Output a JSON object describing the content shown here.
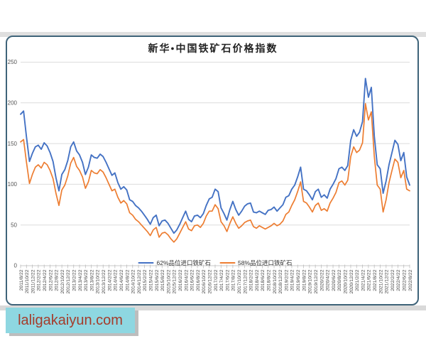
{
  "page": {
    "watermark": "laligakaiyun.com",
    "colors": {
      "watermark_bg": "#8ed7e1",
      "watermark_text": "#a53c2b",
      "panel_border": "#3e6379",
      "page_band": "#dfdfdf",
      "gridline": "#dcdcdc",
      "axis_text": "#555555"
    }
  },
  "chart_data": {
    "type": "line",
    "title": "新华•中国铁矿石价格指数",
    "xlabel": "",
    "ylabel": "",
    "ylim": [
      0,
      250
    ],
    "yticks": [
      0,
      50,
      100,
      150,
      200,
      250
    ],
    "grid": "horizontal-only",
    "legend_position": "bottom-center",
    "x_unit": "monthly values from 2011/8 to 2022/8",
    "x_tick_labels": [
      "2011/8/22",
      "2011/10/22",
      "2011/12/22",
      "2012/2/22",
      "2012/4/22",
      "2012/6/22",
      "2012/8/22",
      "2012/10/22",
      "2012/12/22",
      "2013/2/22",
      "2013/4/22",
      "2013/6/22",
      "2013/8/22",
      "2013/10/22",
      "2013/12/22",
      "2014/2/22",
      "2014/4/22",
      "2014/6/22",
      "2014/8/22",
      "2014/10/22",
      "2014/12/22",
      "2015/2/22",
      "2015/4/22",
      "2015/6/22",
      "2015/8/22",
      "2015/10/22",
      "2015/12/22",
      "2016/2/22",
      "2016/4/22",
      "2016/6/22",
      "2016/8/22",
      "2016/10/22",
      "2016/12/22",
      "2017/2/22",
      "2017/4/22",
      "2017/6/22",
      "2017/8/22",
      "2017/10/22",
      "2017/12/22",
      "2018/2/22",
      "2018/4/22",
      "2018/6/22",
      "2018/8/22",
      "2018/10/22",
      "2018/12/22",
      "2019/2/22",
      "2019/4/22",
      "2019/6/22",
      "2019/8/22",
      "2019/10/22",
      "2019/12/22",
      "2020/2/22",
      "2020/4/22",
      "2020/6/22",
      "2020/8/22",
      "2020/10/22",
      "2020/12/22",
      "2021/2/22",
      "2021/4/22",
      "2021/6/22",
      "2021/8/22",
      "2021/10/22",
      "2021/12/22",
      "2022/2/22",
      "2022/4/22",
      "2022/6/22",
      "2022/8/22"
    ],
    "series": [
      {
        "name": "62%品位进口铁矿石",
        "color": "#4472c4",
        "values": [
          186,
          190,
          158,
          128,
          138,
          146,
          148,
          143,
          151,
          147,
          139,
          128,
          108,
          92,
          112,
          118,
          129,
          146,
          152,
          141,
          136,
          127,
          112,
          121,
          136,
          133,
          132,
          137,
          134,
          127,
          119,
          111,
          114,
          102,
          94,
          97,
          93,
          81,
          79,
          74,
          71,
          67,
          62,
          57,
          51,
          59,
          62,
          49,
          55,
          56,
          52,
          46,
          40,
          44,
          51,
          59,
          67,
          57,
          54,
          61,
          62,
          59,
          64,
          74,
          82,
          84,
          94,
          91,
          71,
          64,
          56,
          69,
          79,
          69,
          62,
          67,
          73,
          76,
          77,
          66,
          65,
          67,
          65,
          63,
          68,
          69,
          72,
          67,
          71,
          75,
          84,
          86,
          94,
          99,
          109,
          121,
          94,
          92,
          87,
          81,
          91,
          94,
          84,
          87,
          83,
          94,
          100,
          107,
          119,
          121,
          117,
          123,
          154,
          167,
          159,
          164,
          177,
          230,
          207,
          219,
          159,
          124,
          119,
          89,
          104,
          124,
          139,
          154,
          149,
          129,
          139,
          109,
          99
        ]
      },
      {
        "name": "58%品位进口铁矿石",
        "color": "#ed7d31",
        "values": [
          152,
          155,
          127,
          101,
          112,
          121,
          124,
          120,
          127,
          124,
          117,
          107,
          89,
          74,
          93,
          99,
          110,
          126,
          133,
          122,
          117,
          109,
          95,
          103,
          117,
          114,
          113,
          118,
          115,
          108,
          100,
          92,
          94,
          84,
          77,
          80,
          76,
          65,
          62,
          57,
          54,
          50,
          46,
          42,
          37,
          44,
          47,
          35,
          40,
          41,
          38,
          33,
          29,
          33,
          40,
          47,
          54,
          45,
          43,
          49,
          50,
          47,
          52,
          61,
          67,
          67,
          75,
          70,
          54,
          49,
          42,
          52,
          60,
          52,
          46,
          49,
          53,
          55,
          56,
          48,
          46,
          49,
          47,
          45,
          47,
          49,
          52,
          49,
          51,
          55,
          63,
          66,
          74,
          81,
          91,
          103,
          79,
          77,
          72,
          66,
          74,
          77,
          68,
          70,
          67,
          77,
          83,
          90,
          102,
          104,
          99,
          105,
          134,
          146,
          139,
          142,
          151,
          199,
          179,
          189,
          134,
          99,
          94,
          66,
          81,
          102,
          117,
          131,
          127,
          108,
          117,
          94,
          92
        ]
      }
    ]
  }
}
